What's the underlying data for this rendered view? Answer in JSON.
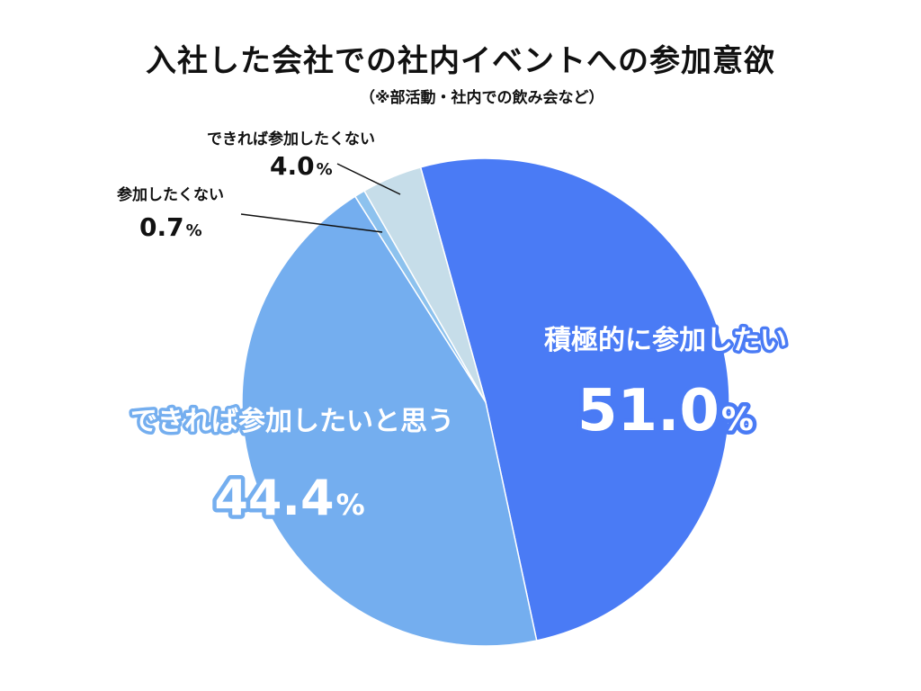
{
  "chart_data": {
    "type": "pie",
    "title": "入社した会社での社内イベントへの参加意欲",
    "subtitle": "（※部活動・社内での飲み会など）",
    "slices": [
      {
        "label": "積極的に参加したい",
        "value": 51.0,
        "value_text": "51.0",
        "color": "#4a7bf5"
      },
      {
        "label": "できれば参加したいと思う",
        "value": 44.4,
        "value_text": "44.4",
        "color": "#74aeef"
      },
      {
        "label": "参加したくない",
        "value": 0.7,
        "value_text": "0.7",
        "color": "#8dc2ee"
      },
      {
        "label": "できれば参加したくない",
        "value": 4.0,
        "value_text": "4.0",
        "color": "#c6dde9"
      }
    ],
    "unit": "%"
  }
}
